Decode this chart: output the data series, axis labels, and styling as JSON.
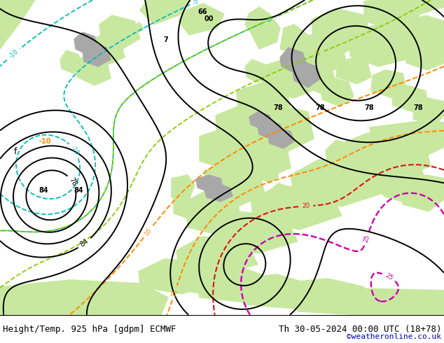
{
  "title_left": "Height/Temp. 925 hPa [gdpm] ECMWF",
  "title_right": "Th 30-05-2024 00:00 UTC (18+78)",
  "credit": "©weatheronline.co.uk",
  "bg_color": "#d0d0d0",
  "land_green": "#c8e8a0",
  "sea_gray": "#c8c8c8",
  "mountain_gray": "#a8a8a8",
  "fig_width": 6.34,
  "fig_height": 4.9,
  "dpi": 100,
  "bottom_bar_color": "#ffffff",
  "title_fontsize": 9,
  "credit_fontsize": 8,
  "credit_color": "#0000cc"
}
